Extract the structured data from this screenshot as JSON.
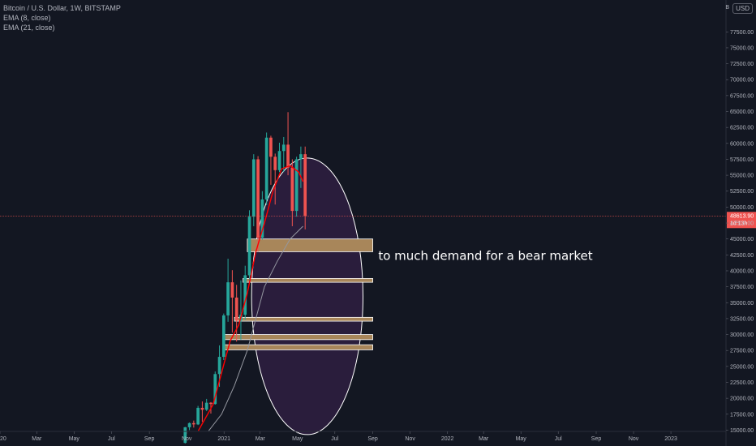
{
  "legend": {
    "symbol": "Bitcoin / U.S. Dollar, 1W, BITSTAMP",
    "ema8": "EMA (8, close)",
    "ema21": "EMA (21, close)"
  },
  "currency": "USD",
  "scale_unit": "B",
  "annotation": "to much demand for a bear market",
  "current_price": {
    "label": "48613.90",
    "countdown": "1d 13h",
    "value": 48613.9,
    "color": "#ef5350"
  },
  "colors": {
    "up": "#26a69a",
    "down": "#ef5350",
    "ema8": "#ff0000",
    "ema21": "#9598a1",
    "circle_fill": "#2b1d3e",
    "circle_stroke": "#ffffff",
    "zone_fill": "#a8865a",
    "zone_stroke": "#ffffff"
  },
  "chart_data": {
    "type": "candlestick",
    "title": "Bitcoin / U.S. Dollar, 1W, BITSTAMP",
    "ylim": [
      14800,
      82500
    ],
    "y_ticks": [
      15000,
      17500,
      20000,
      22500,
      25000,
      27500,
      30000,
      32500,
      35000,
      37500,
      40000,
      42500,
      45000,
      47500,
      50000,
      52500,
      55000,
      57500,
      60000,
      62500,
      65000,
      67500,
      70000,
      72500,
      75000,
      77500
    ],
    "y_tick_labels": [
      "15000.00",
      "17500.00",
      "20000.00",
      "22500.00",
      "25000.00",
      "27500.00",
      "30000.00",
      "32500.00",
      "35000.00",
      "37500.00",
      "40000.00",
      "42500.00",
      "45000.00",
      "47500.00",
      "50000.00",
      "52500.00",
      "55000.00",
      "57500.00",
      "60000.00",
      "62500.00",
      "65000.00",
      "67500.00",
      "70000.00",
      "72500.00",
      "75000.00",
      "77500.00"
    ],
    "x_range": [
      "2020-01-01",
      "2023-04-01"
    ],
    "x_ticks": [
      {
        "label": "2020",
        "date": "2020-01-01"
      },
      {
        "label": "Mar",
        "date": "2020-03-01"
      },
      {
        "label": "May",
        "date": "2020-05-01"
      },
      {
        "label": "Jul",
        "date": "2020-07-01"
      },
      {
        "label": "Sep",
        "date": "2020-09-01"
      },
      {
        "label": "Nov",
        "date": "2020-11-01"
      },
      {
        "label": "2021",
        "date": "2021-01-01"
      },
      {
        "label": "Mar",
        "date": "2021-03-01"
      },
      {
        "label": "May",
        "date": "2021-05-01"
      },
      {
        "label": "Jul",
        "date": "2021-07-01"
      },
      {
        "label": "Sep",
        "date": "2021-09-01"
      },
      {
        "label": "Nov",
        "date": "2021-11-01"
      },
      {
        "label": "2022",
        "date": "2022-01-01"
      },
      {
        "label": "Mar",
        "date": "2022-03-01"
      },
      {
        "label": "May",
        "date": "2022-05-01"
      },
      {
        "label": "Jul",
        "date": "2022-07-01"
      },
      {
        "label": "Sep",
        "date": "2022-09-01"
      },
      {
        "label": "Nov",
        "date": "2022-11-01"
      },
      {
        "label": "2023",
        "date": "2023-01-01"
      }
    ],
    "candles": [
      {
        "date": "2020-10-26",
        "o": 13000,
        "h": 15500,
        "l": 12900,
        "c": 15450
      },
      {
        "date": "2020-11-02",
        "o": 15450,
        "h": 16200,
        "l": 15000,
        "c": 16100
      },
      {
        "date": "2020-11-09",
        "o": 16100,
        "h": 16500,
        "l": 15400,
        "c": 15900
      },
      {
        "date": "2020-11-16",
        "o": 15900,
        "h": 18800,
        "l": 15800,
        "c": 18500
      },
      {
        "date": "2020-11-23",
        "o": 18500,
        "h": 19500,
        "l": 16300,
        "c": 18200
      },
      {
        "date": "2020-11-30",
        "o": 18200,
        "h": 19900,
        "l": 18000,
        "c": 19300
      },
      {
        "date": "2020-12-07",
        "o": 19300,
        "h": 19400,
        "l": 17600,
        "c": 19100
      },
      {
        "date": "2020-12-14",
        "o": 19100,
        "h": 24200,
        "l": 19000,
        "c": 23800
      },
      {
        "date": "2020-12-21",
        "o": 23800,
        "h": 28300,
        "l": 21800,
        "c": 26500
      },
      {
        "date": "2020-12-28",
        "o": 26500,
        "h": 33300,
        "l": 26000,
        "c": 33000
      },
      {
        "date": "2021-01-04",
        "o": 33000,
        "h": 41900,
        "l": 32000,
        "c": 38200
      },
      {
        "date": "2021-01-11",
        "o": 38200,
        "h": 40100,
        "l": 30300,
        "c": 35800
      },
      {
        "date": "2021-01-18",
        "o": 35800,
        "h": 37800,
        "l": 28900,
        "c": 32200
      },
      {
        "date": "2021-01-25",
        "o": 32200,
        "h": 38500,
        "l": 29200,
        "c": 33100
      },
      {
        "date": "2021-02-01",
        "o": 33100,
        "h": 40800,
        "l": 32300,
        "c": 39300
      },
      {
        "date": "2021-02-08",
        "o": 39300,
        "h": 49500,
        "l": 38000,
        "c": 48500
      },
      {
        "date": "2021-02-15",
        "o": 48500,
        "h": 58300,
        "l": 47000,
        "c": 57500
      },
      {
        "date": "2021-02-22",
        "o": 57500,
        "h": 58000,
        "l": 43000,
        "c": 45200
      },
      {
        "date": "2021-03-01",
        "o": 45200,
        "h": 52500,
        "l": 44900,
        "c": 51200
      },
      {
        "date": "2021-03-08",
        "o": 51200,
        "h": 61700,
        "l": 50300,
        "c": 60900
      },
      {
        "date": "2021-03-15",
        "o": 60900,
        "h": 61200,
        "l": 53500,
        "c": 57900
      },
      {
        "date": "2021-03-22",
        "o": 57900,
        "h": 58400,
        "l": 50400,
        "c": 55800
      },
      {
        "date": "2021-03-29",
        "o": 55800,
        "h": 60100,
        "l": 55500,
        "c": 58800
      },
      {
        "date": "2021-04-05",
        "o": 58800,
        "h": 61000,
        "l": 55500,
        "c": 59800
      },
      {
        "date": "2021-04-12",
        "o": 59800,
        "h": 64900,
        "l": 55000,
        "c": 56200
      },
      {
        "date": "2021-04-19",
        "o": 56200,
        "h": 57500,
        "l": 47000,
        "c": 49400
      },
      {
        "date": "2021-04-26",
        "o": 49400,
        "h": 57900,
        "l": 48500,
        "c": 57500
      },
      {
        "date": "2021-05-03",
        "o": 57500,
        "h": 59500,
        "l": 53000,
        "c": 58300
      },
      {
        "date": "2021-05-10",
        "o": 58300,
        "h": 59500,
        "l": 46500,
        "c": 48600
      }
    ],
    "ema8_points": [
      {
        "date": "2020-11-20",
        "v": 14900
      },
      {
        "date": "2020-12-14",
        "v": 19000
      },
      {
        "date": "2020-12-28",
        "v": 24000
      },
      {
        "date": "2021-01-11",
        "v": 29000
      },
      {
        "date": "2021-01-25",
        "v": 31500
      },
      {
        "date": "2021-02-08",
        "v": 36500
      },
      {
        "date": "2021-02-22",
        "v": 43000
      },
      {
        "date": "2021-03-08",
        "v": 47500
      },
      {
        "date": "2021-03-22",
        "v": 52500
      },
      {
        "date": "2021-04-05",
        "v": 56000
      },
      {
        "date": "2021-04-19",
        "v": 56500
      },
      {
        "date": "2021-05-03",
        "v": 55500
      },
      {
        "date": "2021-05-10",
        "v": 54000
      }
    ],
    "ema21_points": [
      {
        "date": "2020-12-07",
        "v": 14900
      },
      {
        "date": "2020-12-28",
        "v": 17500
      },
      {
        "date": "2021-01-18",
        "v": 22000
      },
      {
        "date": "2021-02-08",
        "v": 27500
      },
      {
        "date": "2021-02-22",
        "v": 32500
      },
      {
        "date": "2021-03-08",
        "v": 37500
      },
      {
        "date": "2021-03-29",
        "v": 41500
      },
      {
        "date": "2021-04-19",
        "v": 45000
      },
      {
        "date": "2021-05-10",
        "v": 47000
      }
    ],
    "circle": {
      "center_date": "2021-05-17",
      "center_value": 36000,
      "rx_days": 91,
      "ry_value": 21700
    },
    "zones": [
      {
        "start": "2021-02-08",
        "end": "2021-09-01",
        "low": 43000,
        "high": 45000
      },
      {
        "start": "2021-02-01",
        "end": "2021-09-01",
        "low": 38200,
        "high": 38800
      },
      {
        "start": "2021-01-18",
        "end": "2021-09-01",
        "low": 32100,
        "high": 32700
      },
      {
        "start": "2021-01-01",
        "end": "2021-09-01",
        "low": 29200,
        "high": 30000
      },
      {
        "start": "2021-01-01",
        "end": "2021-09-01",
        "low": 27600,
        "high": 28400
      }
    ],
    "annotation": {
      "date": "2021-09-10",
      "value": 41700
    }
  }
}
